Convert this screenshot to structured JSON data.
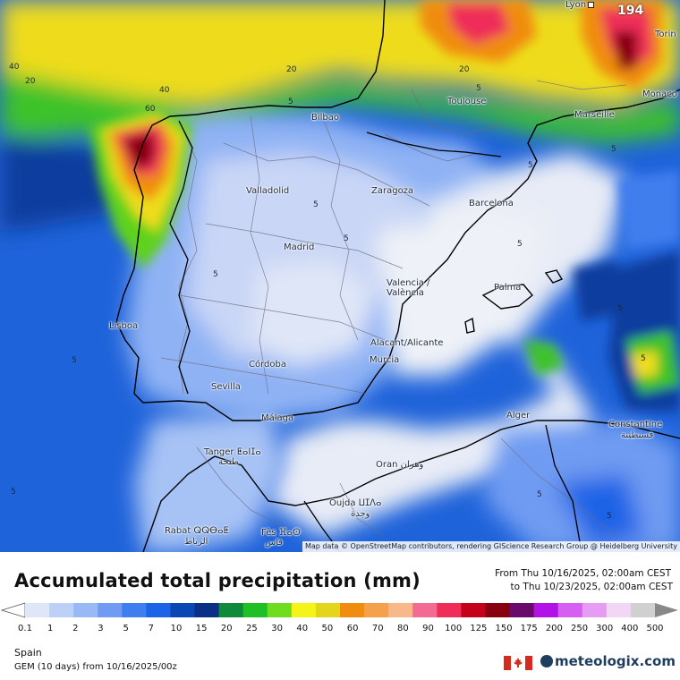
{
  "map": {
    "max_value": "194",
    "attribution": "Map data © OpenStreetMap contributors, rendering GIScience Research Group @ Heidelberg University",
    "cities": [
      {
        "name": "Lyon",
        "label": "Lyon"
      },
      {
        "name": "Torino",
        "label": "Torin"
      },
      {
        "name": "Monaco",
        "label": "Monaco"
      },
      {
        "name": "Marseille",
        "label": "Marseille"
      },
      {
        "name": "Toulouse",
        "label": "Toulouse"
      },
      {
        "name": "Bilbao",
        "label": "Bilbao"
      },
      {
        "name": "Valladolid",
        "label": "Valladolid"
      },
      {
        "name": "Zaragoza",
        "label": "Zaragoza"
      },
      {
        "name": "Barcelona",
        "label": "Barcelona"
      },
      {
        "name": "Madrid",
        "label": "Madrid"
      },
      {
        "name": "Valencia",
        "label": "Valencia / València"
      },
      {
        "name": "Palma",
        "label": "Palma"
      },
      {
        "name": "Lisboa",
        "label": "Lisboa"
      },
      {
        "name": "Alicante",
        "label": "Alacant/Alicante"
      },
      {
        "name": "Murcia",
        "label": "Murcia"
      },
      {
        "name": "Cordoba",
        "label": "Córdoba"
      },
      {
        "name": "Sevilla",
        "label": "Sevilla"
      },
      {
        "name": "Malaga",
        "label": "Málaga"
      },
      {
        "name": "Alger",
        "label": "Alger"
      },
      {
        "name": "Constantine",
        "label": "Constantine"
      },
      {
        "name": "Constantine-ar",
        "label": "قسنطينة"
      },
      {
        "name": "Tanger",
        "label": "Tanger ⵟⴰⵏⵊⴰ"
      },
      {
        "name": "Tanger-ar",
        "label": "طنجة"
      },
      {
        "name": "Oran",
        "label": "Oran وهران"
      },
      {
        "name": "Oujda",
        "label": "Oujda ⵡⵊⴷⴰ"
      },
      {
        "name": "Oujda-ar",
        "label": "وجدة"
      },
      {
        "name": "Rabat",
        "label": "Rabat ⵕⵕⴱⴰⵟ"
      },
      {
        "name": "Rabat-ar",
        "label": "الرباط"
      },
      {
        "name": "Fes",
        "label": "Fès ⴼⴰⵙ"
      },
      {
        "name": "Fes-ar",
        "label": "فاس"
      }
    ],
    "contour_labels": [
      "40",
      "20",
      "40",
      "60",
      "20",
      "20",
      "5",
      "5",
      "5",
      "5",
      "5",
      "5",
      "5",
      "5",
      "5",
      "5",
      "5",
      "5",
      "5",
      "5"
    ]
  },
  "legend": {
    "title": "Accumulated total precipitation (mm)",
    "time_from": "From Thu 10/16/2025, 02:00am CEST",
    "time_to": "to Thu 10/23/2025, 02:00am CEST",
    "ticks": [
      "0.1",
      "1",
      "2",
      "3",
      "5",
      "7",
      "10",
      "15",
      "20",
      "25",
      "30",
      "40",
      "50",
      "60",
      "70",
      "80",
      "90",
      "100",
      "125",
      "150",
      "175",
      "200",
      "250",
      "300",
      "400",
      "500"
    ],
    "colors": [
      "#dfe6f7",
      "#bdd0f7",
      "#98b8f6",
      "#6f9bf2",
      "#3f7eee",
      "#1b64e6",
      "#0a47b4",
      "#0c2f86",
      "#0f8a3a",
      "#1fbf28",
      "#6fdc1e",
      "#f4f418",
      "#e4d41a",
      "#f08c10",
      "#f5a04a",
      "#f8b888",
      "#f36a92",
      "#ee2e58",
      "#c4001a",
      "#880010",
      "#6a0a6a",
      "#b212e6",
      "#d65ef2",
      "#e79cf4",
      "#f2d6f6",
      "#d0d0d0"
    ]
  },
  "footer": {
    "region": "Spain",
    "model": "GEM (10 days) from 10/16/2025/00z",
    "logo": "meteologix.com"
  }
}
